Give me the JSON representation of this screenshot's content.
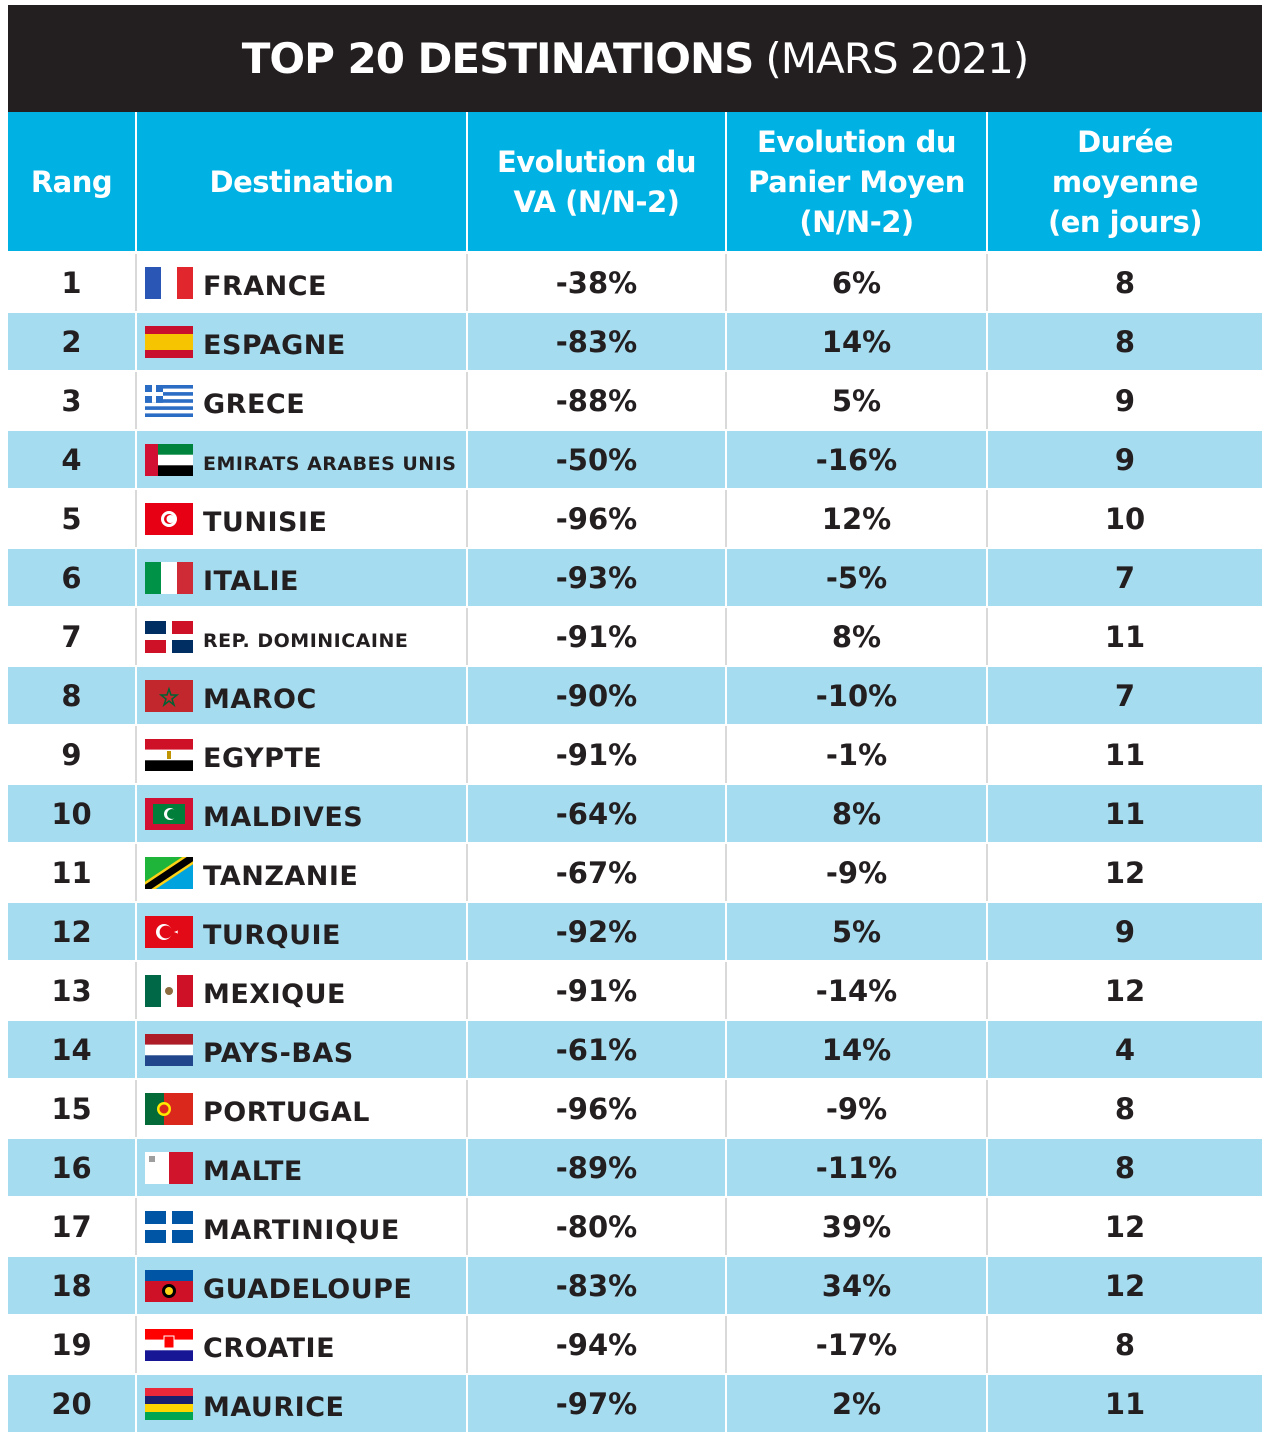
{
  "title": {
    "main": "TOP 20 DESTINATIONS",
    "sub": "(MARS 2021)"
  },
  "headers": {
    "rang": "Rang",
    "destination": "Destination",
    "va": [
      "Evolution du",
      "VA (N/N-2)"
    ],
    "panier": [
      "Evolution du",
      "Panier Moyen",
      "(N/N-2)"
    ],
    "duree": [
      "Durée",
      "moyenne",
      "(en jours)"
    ]
  },
  "rows": [
    {
      "rang": "1",
      "destination": "FRANCE",
      "va": "-38%",
      "panier": "6%",
      "duree": "8",
      "flag": "france-flag-icon"
    },
    {
      "rang": "2",
      "destination": "ESPAGNE",
      "va": "-83%",
      "panier": "14%",
      "duree": "8",
      "flag": "spain-flag-icon"
    },
    {
      "rang": "3",
      "destination": "GRECE",
      "va": "-88%",
      "panier": "5%",
      "duree": "9",
      "flag": "greece-flag-icon"
    },
    {
      "rang": "4",
      "destination": "EMIRATS ARABES UNIS",
      "va": "-50%",
      "panier": "-16%",
      "duree": "9",
      "flag": "uae-flag-icon"
    },
    {
      "rang": "5",
      "destination": "TUNISIE",
      "va": "-96%",
      "panier": "12%",
      "duree": "10",
      "flag": "tunisia-flag-icon"
    },
    {
      "rang": "6",
      "destination": "ITALIE",
      "va": "-93%",
      "panier": "-5%",
      "duree": "7",
      "flag": "italy-flag-icon"
    },
    {
      "rang": "7",
      "destination": "REP. DOMINICAINE",
      "va": "-91%",
      "panier": "8%",
      "duree": "11",
      "flag": "dominican-republic-flag-icon"
    },
    {
      "rang": "8",
      "destination": "MAROC",
      "va": "-90%",
      "panier": "-10%",
      "duree": "7",
      "flag": "morocco-flag-icon"
    },
    {
      "rang": "9",
      "destination": "EGYPTE",
      "va": "-91%",
      "panier": "-1%",
      "duree": "11",
      "flag": "egypt-flag-icon"
    },
    {
      "rang": "10",
      "destination": "MALDIVES",
      "va": "-64%",
      "panier": "8%",
      "duree": "11",
      "flag": "maldives-flag-icon"
    },
    {
      "rang": "11",
      "destination": "TANZANIE",
      "va": "-67%",
      "panier": "-9%",
      "duree": "12",
      "flag": "tanzania-flag-icon"
    },
    {
      "rang": "12",
      "destination": "TURQUIE",
      "va": "-92%",
      "panier": "5%",
      "duree": "9",
      "flag": "turkey-flag-icon"
    },
    {
      "rang": "13",
      "destination": "MEXIQUE",
      "va": "-91%",
      "panier": "-14%",
      "duree": "12",
      "flag": "mexico-flag-icon"
    },
    {
      "rang": "14",
      "destination": "PAYS-BAS",
      "va": "-61%",
      "panier": "14%",
      "duree": "4",
      "flag": "netherlands-flag-icon"
    },
    {
      "rang": "15",
      "destination": "PORTUGAL",
      "va": "-96%",
      "panier": "-9%",
      "duree": "8",
      "flag": "portugal-flag-icon"
    },
    {
      "rang": "16",
      "destination": "MALTE",
      "va": "-89%",
      "panier": "-11%",
      "duree": "8",
      "flag": "malta-flag-icon"
    },
    {
      "rang": "17",
      "destination": "MARTINIQUE",
      "va": "-80%",
      "panier": "39%",
      "duree": "12",
      "flag": "martinique-flag-icon"
    },
    {
      "rang": "18",
      "destination": "GUADELOUPE",
      "va": "-83%",
      "panier": "34%",
      "duree": "12",
      "flag": "guadeloupe-flag-icon"
    },
    {
      "rang": "19",
      "destination": "CROATIE",
      "va": "-94%",
      "panier": "-17%",
      "duree": "8",
      "flag": "croatia-flag-icon"
    },
    {
      "rang": "20",
      "destination": "MAURICE",
      "va": "-97%",
      "panier": "2%",
      "duree": "11",
      "flag": "mauritius-flag-icon"
    }
  ],
  "colors": {
    "title_bg": "#231f20",
    "header_bg": "#00b2e3",
    "alt_row_bg": "#a6dcef",
    "text": "#231f20"
  }
}
